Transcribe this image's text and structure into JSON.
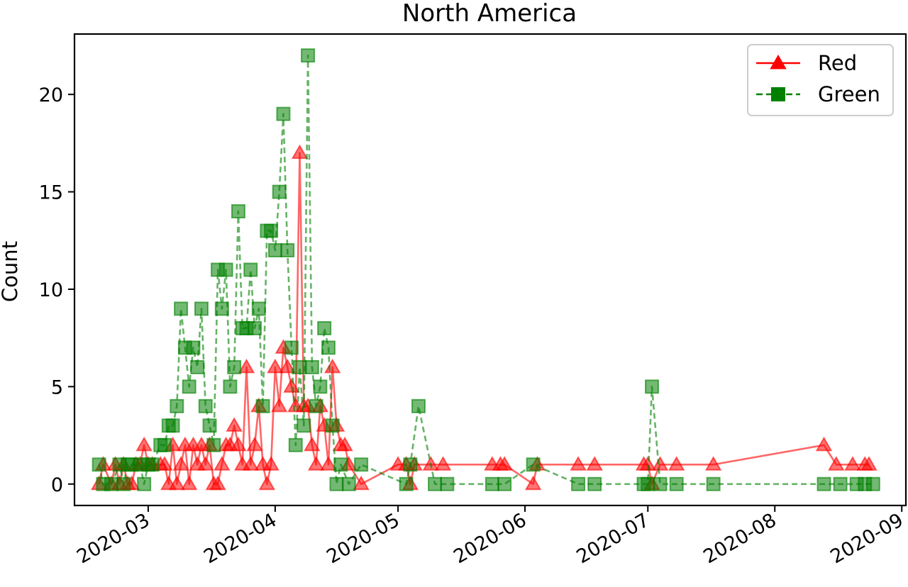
{
  "chart_data": {
    "type": "line",
    "title": "North America",
    "xlabel": "",
    "ylabel": "Count",
    "x_range": [
      "2020-02-12",
      "2020-09-02"
    ],
    "ylim": [
      -1.1,
      23.1
    ],
    "x_ticks": [
      "2020-03-01",
      "2020-04-01",
      "2020-05-01",
      "2020-06-01",
      "2020-07-01",
      "2020-08-01",
      "2020-09-01"
    ],
    "x_tick_labels": [
      "2020-03",
      "2020-04",
      "2020-05",
      "2020-06",
      "2020-07",
      "2020-08",
      "2020-09"
    ],
    "y_ticks": [
      0,
      5,
      10,
      15,
      20
    ],
    "grid": false,
    "legend_position": "top-right",
    "series": [
      {
        "name": "Red",
        "color": "#ff0000",
        "line_style": "solid",
        "marker": "triangle",
        "points": [
          [
            "2020-02-18",
            0
          ],
          [
            "2020-02-19",
            1
          ],
          [
            "2020-02-21",
            0
          ],
          [
            "2020-02-22",
            1
          ],
          [
            "2020-02-23",
            0
          ],
          [
            "2020-02-24",
            1
          ],
          [
            "2020-02-25",
            0
          ],
          [
            "2020-02-26",
            0
          ],
          [
            "2020-02-27",
            1
          ],
          [
            "2020-02-28",
            1
          ],
          [
            "2020-02-29",
            2
          ],
          [
            "2020-03-01",
            1
          ],
          [
            "2020-03-02",
            1
          ],
          [
            "2020-03-04",
            1
          ],
          [
            "2020-03-05",
            1
          ],
          [
            "2020-03-06",
            0
          ],
          [
            "2020-03-07",
            2
          ],
          [
            "2020-03-08",
            0
          ],
          [
            "2020-03-09",
            1
          ],
          [
            "2020-03-10",
            2
          ],
          [
            "2020-03-11",
            0
          ],
          [
            "2020-03-12",
            2
          ],
          [
            "2020-03-13",
            1
          ],
          [
            "2020-03-14",
            2
          ],
          [
            "2020-03-15",
            1
          ],
          [
            "2020-03-16",
            2
          ],
          [
            "2020-03-17",
            0
          ],
          [
            "2020-03-18",
            0
          ],
          [
            "2020-03-19",
            1
          ],
          [
            "2020-03-20",
            2
          ],
          [
            "2020-03-21",
            2
          ],
          [
            "2020-03-22",
            3
          ],
          [
            "2020-03-23",
            2
          ],
          [
            "2020-03-24",
            1
          ],
          [
            "2020-03-25",
            6
          ],
          [
            "2020-03-26",
            1
          ],
          [
            "2020-03-27",
            2
          ],
          [
            "2020-03-28",
            4
          ],
          [
            "2020-03-29",
            1
          ],
          [
            "2020-03-30",
            0
          ],
          [
            "2020-03-31",
            1
          ],
          [
            "2020-04-01",
            6
          ],
          [
            "2020-04-02",
            4
          ],
          [
            "2020-04-03",
            7
          ],
          [
            "2020-04-04",
            6
          ],
          [
            "2020-04-05",
            5
          ],
          [
            "2020-04-06",
            4
          ],
          [
            "2020-04-07",
            17
          ],
          [
            "2020-04-08",
            4
          ],
          [
            "2020-04-09",
            4
          ],
          [
            "2020-04-10",
            2
          ],
          [
            "2020-04-11",
            1
          ],
          [
            "2020-04-12",
            4
          ],
          [
            "2020-04-13",
            3
          ],
          [
            "2020-04-14",
            1
          ],
          [
            "2020-04-15",
            6
          ],
          [
            "2020-04-16",
            3
          ],
          [
            "2020-04-17",
            2
          ],
          [
            "2020-04-18",
            2
          ],
          [
            "2020-04-19",
            1
          ],
          [
            "2020-04-22",
            0
          ],
          [
            "2020-05-01",
            1
          ],
          [
            "2020-05-03",
            1
          ],
          [
            "2020-05-04",
            0
          ],
          [
            "2020-05-05",
            1
          ],
          [
            "2020-05-09",
            1
          ],
          [
            "2020-05-12",
            1
          ],
          [
            "2020-05-24",
            1
          ],
          [
            "2020-05-26",
            1
          ],
          [
            "2020-05-27",
            1
          ],
          [
            "2020-06-03",
            0
          ],
          [
            "2020-06-04",
            1
          ],
          [
            "2020-06-14",
            1
          ],
          [
            "2020-06-18",
            1
          ],
          [
            "2020-06-30",
            1
          ],
          [
            "2020-07-01",
            1
          ],
          [
            "2020-07-02",
            0
          ],
          [
            "2020-07-04",
            1
          ],
          [
            "2020-07-08",
            1
          ],
          [
            "2020-07-17",
            1
          ],
          [
            "2020-08-13",
            2
          ],
          [
            "2020-08-16",
            1
          ],
          [
            "2020-08-20",
            1
          ],
          [
            "2020-08-23",
            1
          ],
          [
            "2020-08-24",
            1
          ]
        ]
      },
      {
        "name": "Green",
        "color": "#008000",
        "line_style": "dashed",
        "marker": "square",
        "points": [
          [
            "2020-02-18",
            1
          ],
          [
            "2020-02-19",
            0
          ],
          [
            "2020-02-21",
            0
          ],
          [
            "2020-02-23",
            1
          ],
          [
            "2020-02-24",
            0
          ],
          [
            "2020-02-25",
            1
          ],
          [
            "2020-02-26",
            1
          ],
          [
            "2020-02-28",
            1
          ],
          [
            "2020-02-29",
            0
          ],
          [
            "2020-03-01",
            1
          ],
          [
            "2020-03-02",
            1
          ],
          [
            "2020-03-04",
            2
          ],
          [
            "2020-03-05",
            2
          ],
          [
            "2020-03-06",
            3
          ],
          [
            "2020-03-07",
            3
          ],
          [
            "2020-03-08",
            4
          ],
          [
            "2020-03-09",
            9
          ],
          [
            "2020-03-10",
            7
          ],
          [
            "2020-03-11",
            5
          ],
          [
            "2020-03-12",
            7
          ],
          [
            "2020-03-13",
            6
          ],
          [
            "2020-03-14",
            9
          ],
          [
            "2020-03-15",
            4
          ],
          [
            "2020-03-16",
            3
          ],
          [
            "2020-03-17",
            2
          ],
          [
            "2020-03-18",
            11
          ],
          [
            "2020-03-19",
            9
          ],
          [
            "2020-03-20",
            11
          ],
          [
            "2020-03-21",
            5
          ],
          [
            "2020-03-22",
            6
          ],
          [
            "2020-03-23",
            14
          ],
          [
            "2020-03-24",
            8
          ],
          [
            "2020-03-25",
            8
          ],
          [
            "2020-03-26",
            11
          ],
          [
            "2020-03-27",
            8
          ],
          [
            "2020-03-28",
            9
          ],
          [
            "2020-03-29",
            4
          ],
          [
            "2020-03-30",
            13
          ],
          [
            "2020-03-31",
            13
          ],
          [
            "2020-04-01",
            12
          ],
          [
            "2020-04-02",
            15
          ],
          [
            "2020-04-03",
            19
          ],
          [
            "2020-04-04",
            12
          ],
          [
            "2020-04-05",
            7
          ],
          [
            "2020-04-06",
            2
          ],
          [
            "2020-04-07",
            6
          ],
          [
            "2020-04-08",
            3
          ],
          [
            "2020-04-09",
            22
          ],
          [
            "2020-04-10",
            6
          ],
          [
            "2020-04-11",
            4
          ],
          [
            "2020-04-12",
            5
          ],
          [
            "2020-04-13",
            8
          ],
          [
            "2020-04-14",
            7
          ],
          [
            "2020-04-15",
            3
          ],
          [
            "2020-04-16",
            0
          ],
          [
            "2020-04-17",
            1
          ],
          [
            "2020-04-19",
            0
          ],
          [
            "2020-04-22",
            1
          ],
          [
            "2020-05-03",
            0
          ],
          [
            "2020-05-04",
            1
          ],
          [
            "2020-05-06",
            4
          ],
          [
            "2020-05-10",
            0
          ],
          [
            "2020-05-13",
            0
          ],
          [
            "2020-05-24",
            0
          ],
          [
            "2020-05-27",
            0
          ],
          [
            "2020-06-03",
            1
          ],
          [
            "2020-06-14",
            0
          ],
          [
            "2020-06-18",
            0
          ],
          [
            "2020-06-30",
            0
          ],
          [
            "2020-07-01",
            0
          ],
          [
            "2020-07-02",
            5
          ],
          [
            "2020-07-04",
            0
          ],
          [
            "2020-07-08",
            0
          ],
          [
            "2020-07-17",
            0
          ],
          [
            "2020-08-13",
            0
          ],
          [
            "2020-08-17",
            0
          ],
          [
            "2020-08-21",
            0
          ],
          [
            "2020-08-23",
            0
          ],
          [
            "2020-08-25",
            0
          ]
        ]
      }
    ]
  }
}
